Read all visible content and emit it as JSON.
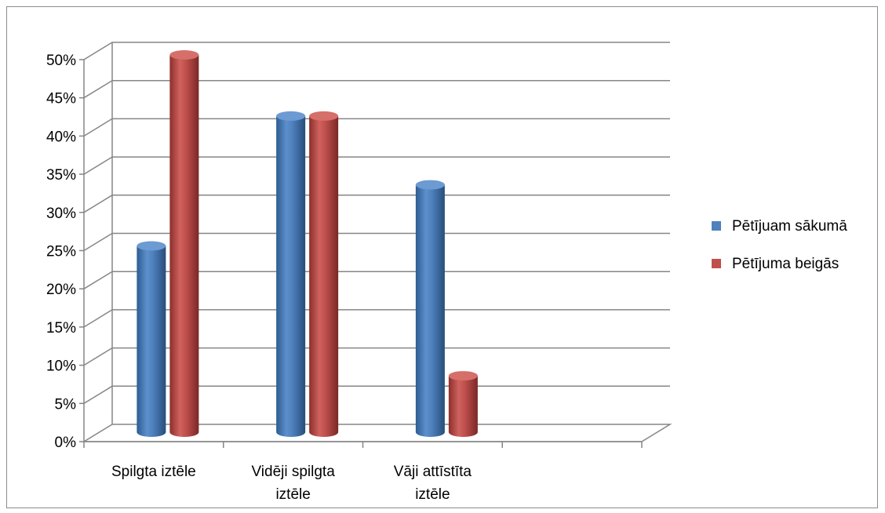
{
  "chart_data": {
    "type": "bar",
    "style": "3d-cylinder",
    "categories": [
      "Spilgta iztēle",
      "Vidēji spilgta iztēle",
      "Vāji attīstīta iztēle",
      ""
    ],
    "category_lines": [
      [
        "Spilgta iztēle"
      ],
      [
        "Vidēji spilgta",
        "iztēle"
      ],
      [
        "Vāji attīstīta",
        "iztēle"
      ],
      []
    ],
    "series": [
      {
        "name": "Pētījuam sākumā",
        "values": [
          25,
          42,
          33,
          null
        ],
        "color": "#4f81bd"
      },
      {
        "name": "Pētījuma beigās",
        "values": [
          50,
          42,
          8,
          null
        ],
        "color": "#c0504d"
      }
    ],
    "y_ticks": [
      "0%",
      "5%",
      "10%",
      "15%",
      "20%",
      "25%",
      "30%",
      "35%",
      "40%",
      "45%",
      "50%"
    ],
    "ylim": [
      0,
      50
    ],
    "y_unit": "%",
    "grid": true,
    "legend_position": "right",
    "title": "",
    "xlabel": "",
    "ylabel": ""
  }
}
